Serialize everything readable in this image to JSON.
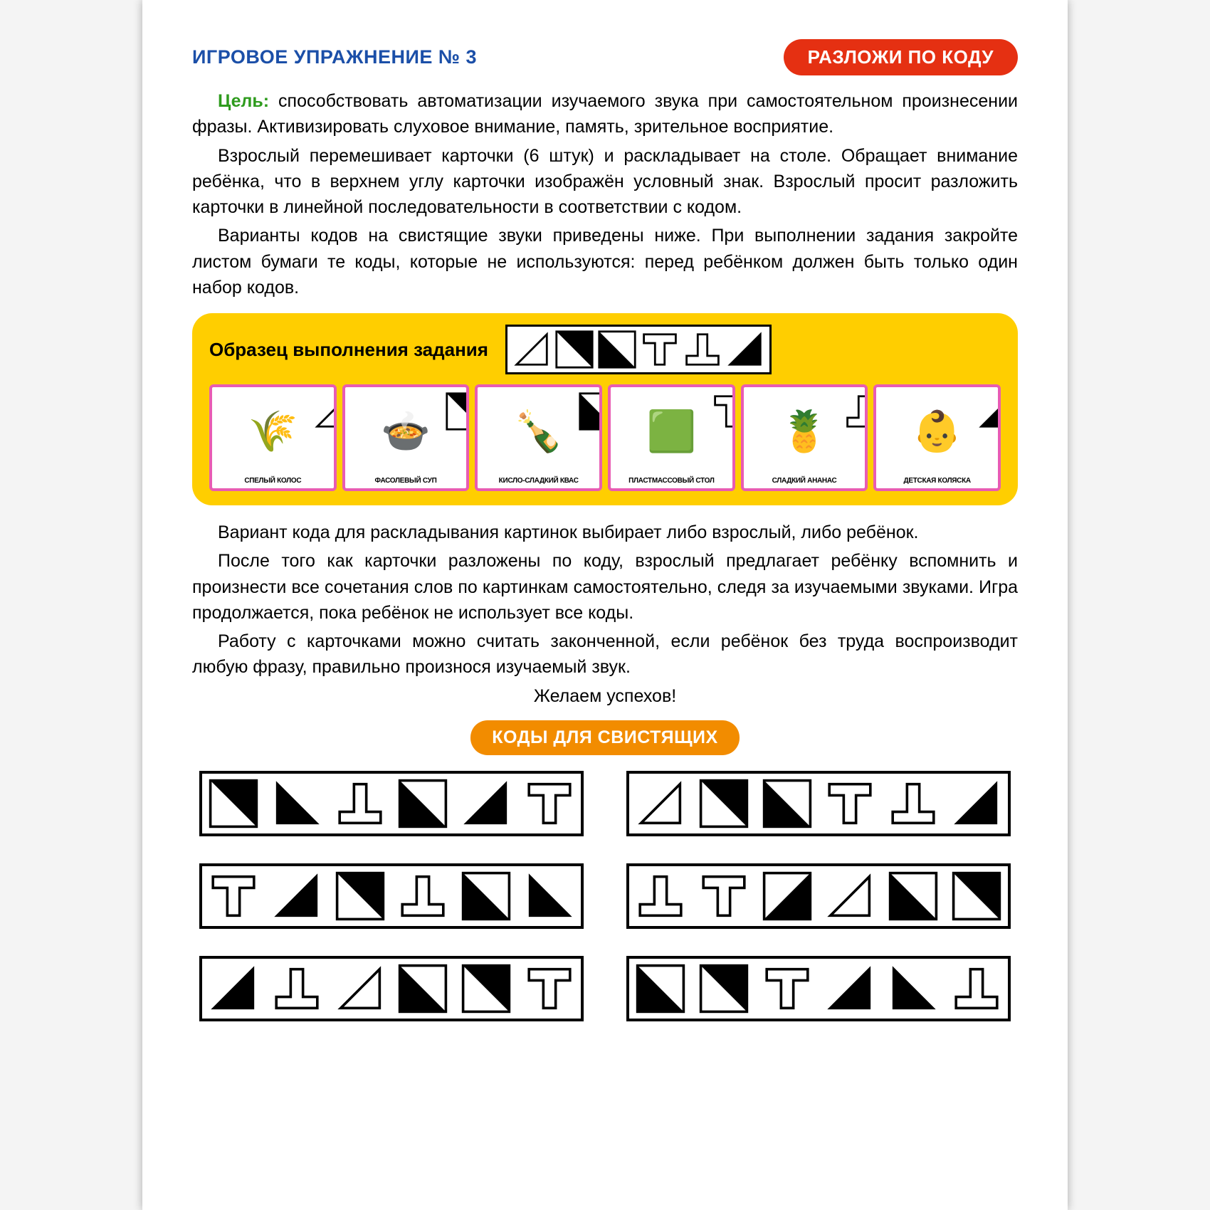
{
  "header": {
    "title": "ИГРОВОЕ УПРАЖНЕНИЕ № 3",
    "badge": "РАЗЛОЖИ ПО КОДУ",
    "title_color": "#1B4FA8",
    "badge_bg": "#E53012",
    "badge_fg": "#ffffff"
  },
  "goal": {
    "label": "Цель:",
    "label_color": "#2E9B1D",
    "text": "способствовать автоматизации изучаемого звука при самостоятельном произнесении фразы. Активизировать слуховое внимание, память, зрительное восприятие."
  },
  "paragraphs_a": [
    "Взрослый перемешивает карточки (6 штук) и раскладывает на столе. Обращает внимание ребёнка, что в верхнем углу карточки изображён условный знак. Взрослый просит разложить карточки в линейной последовательности в соответствии с кодом.",
    "Варианты кодов на свистящие звуки приведены ниже. При выполнении задания закройте листом бумаги те коды, которые не используются: перед ребёнком должен быть только один набор кодов."
  ],
  "sample": {
    "panel_bg": "#FFCE00",
    "title": "Образец выполнения задания",
    "code": [
      "tri-br-outline",
      "sq-diag-tr",
      "sq-diag-bl",
      "T-outline",
      "T-inv-outline",
      "tri-br-filled"
    ],
    "card_border": "#E85CB3",
    "cards": [
      {
        "caption": "СПЕЛЫЙ КОЛОС",
        "corner": "tri-br-outline",
        "emoji": "🌾",
        "tint": "#C79A3B"
      },
      {
        "caption": "ФАСОЛЕВЫЙ СУП",
        "corner": "sq-diag-tr",
        "emoji": "🍲",
        "tint": "#B5472F"
      },
      {
        "caption": "КИСЛО-СЛАДКИЙ КВАС",
        "corner": "sq-diag-bl",
        "emoji": "🍾",
        "tint": "#7A3A1C"
      },
      {
        "caption": "ПЛАСТМАССОВЫЙ СТОЛ",
        "corner": "T-outline",
        "emoji": "🟩",
        "tint": "#169B4C"
      },
      {
        "caption": "СЛАДКИЙ АНАНАС",
        "corner": "T-inv-outline",
        "emoji": "🍍",
        "tint": "#E2A500"
      },
      {
        "caption": "ДЕТСКАЯ КОЛЯСКА",
        "corner": "tri-br-filled",
        "emoji": "👶",
        "tint": "#E64D8B"
      }
    ]
  },
  "paragraphs_b": [
    "Вариант кода для раскладывания картинок выбирает либо взрослый, либо ребёнок.",
    "После того как карточки разложены по коду, взрослый предлагает ребёнку вспомнить и произнести все сочетания слов по картинкам самостоятельно, следя за изучаемыми звуками. Игра продолжается, пока ребёнок не использует все коды.",
    "Работу с карточками можно считать законченной, если ребёнок без труда воспроизводит любую фразу, правильно произнося изучаемый звук."
  ],
  "wish": "Желаем успехов!",
  "codes_section": {
    "title": "КОДЫ ДЛЯ СВИСТЯЩИХ",
    "pill_bg": "#F28C00",
    "pill_fg": "#ffffff",
    "strips": [
      [
        "sq-diag-tr",
        "tri-bl-filled",
        "T-inv-outline",
        "sq-diag-bl",
        "tri-br-filled",
        "T-outline"
      ],
      [
        "tri-br-outline",
        "sq-diag-tr",
        "sq-diag-bl",
        "T-outline",
        "T-inv-outline",
        "tri-br-filled"
      ],
      [
        "T-outline",
        "tri-br-filled",
        "sq-diag-tr",
        "T-inv-outline",
        "sq-diag-bl",
        "tri-bl-filled"
      ],
      [
        "T-inv-outline",
        "T-outline",
        "sq-diag-half",
        "tri-br-outline",
        "sq-diag-bl",
        "sq-diag-tr"
      ],
      [
        "tri-br-filled",
        "T-inv-outline",
        "tri-br-outline",
        "sq-diag-bl",
        "sq-diag-tr",
        "T-outline"
      ],
      [
        "sq-diag-bl",
        "sq-diag-tr",
        "T-outline",
        "tri-br-filled",
        "tri-bl-filled",
        "T-inv-outline"
      ]
    ]
  },
  "symbol_style": {
    "stroke": "#000000",
    "fill": "#000000",
    "stroke_width": 5
  }
}
